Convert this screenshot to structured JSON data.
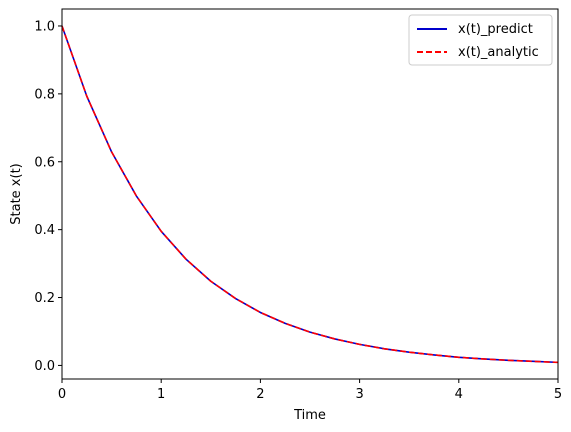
{
  "chart_data": {
    "type": "line",
    "title": "",
    "xlabel": "Time",
    "ylabel": "State x(t)",
    "xlim": [
      0,
      5
    ],
    "ylim": [
      -0.04,
      1.05
    ],
    "xticks": [
      0,
      1,
      2,
      3,
      4,
      5
    ],
    "yticks": [
      0.0,
      0.2,
      0.4,
      0.6,
      0.8,
      1.0
    ],
    "xtick_labels": [
      "0",
      "1",
      "2",
      "3",
      "4",
      "5"
    ],
    "ytick_labels": [
      "0.0",
      "0.2",
      "0.4",
      "0.6",
      "0.8",
      "1.0"
    ],
    "grid": false,
    "legend_position": "top-right",
    "x": [
      0,
      0.25,
      0.5,
      0.75,
      1.0,
      1.25,
      1.5,
      1.75,
      2.0,
      2.25,
      2.5,
      2.75,
      3.0,
      3.25,
      3.5,
      3.75,
      4.0,
      4.25,
      4.5,
      4.75,
      5.0
    ],
    "series": [
      {
        "name": "x(t)_predict",
        "color": "#0000cc",
        "style": "solid",
        "values": [
          1.0,
          0.793,
          0.629,
          0.499,
          0.395,
          0.313,
          0.248,
          0.197,
          0.156,
          0.124,
          0.098,
          0.078,
          0.062,
          0.049,
          0.039,
          0.031,
          0.024,
          0.019,
          0.015,
          0.012,
          0.009
        ]
      },
      {
        "name": "x(t)_analytic",
        "color": "#ff0000",
        "style": "dashed",
        "values": [
          1.0,
          0.793,
          0.629,
          0.499,
          0.395,
          0.313,
          0.248,
          0.197,
          0.156,
          0.124,
          0.098,
          0.078,
          0.062,
          0.049,
          0.039,
          0.031,
          0.024,
          0.019,
          0.015,
          0.012,
          0.009
        ]
      }
    ]
  }
}
